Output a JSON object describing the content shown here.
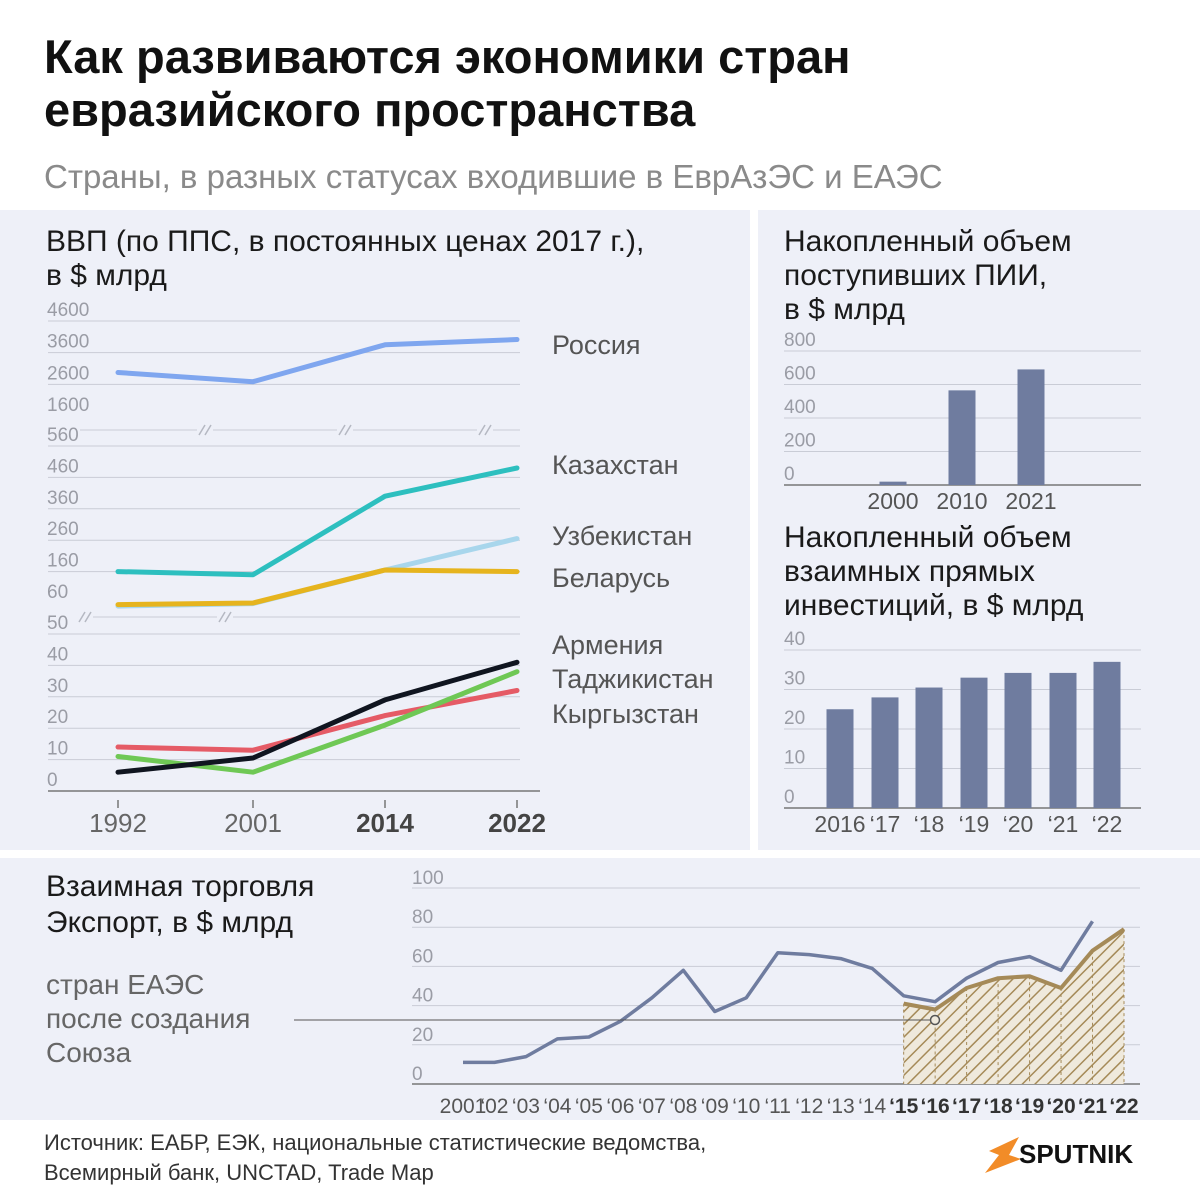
{
  "title": "Как развиваются экономики стран евразийского пространства",
  "subtitle": "Страны, в разных статусах входившие в ЕврАзЭС и ЕАЭС",
  "colors": {
    "russia": "#7fa6ef",
    "kazakhstan": "#2dbfbf",
    "uzbekistan": "#a8d6ec",
    "belarus": "#e6b41e",
    "armenia": "#e55b66",
    "tajikistan": "#6fc855",
    "kyrgyzstan": "#101520",
    "bars": "#6f7c9f",
    "export_line": "#6f7c9f",
    "export_eaeu": "#a58a58",
    "panel_bg": "#eef0f8",
    "logo": "#f28c28"
  },
  "gdp_panel": {
    "title": "ВВП (по ППС, в постоянных ценах 2017 г.),",
    "unit": "в $ млрд",
    "labels": {
      "russia": "Россия",
      "kazakhstan": "Казахстан",
      "uzbekistan": "Узбекистан",
      "belarus": "Беларусь",
      "armenia": "Армения",
      "tajikistan": "Таджикистан",
      "kyrgyzstan": "Кыргызстан"
    }
  },
  "fdi_panel": {
    "title_line1": "Накопленный объем",
    "title_line2": "поступивших ПИИ,",
    "title_line3": "в $ млрд"
  },
  "mutual_panel": {
    "title_line1": "Накопленный объем",
    "title_line2": "взаимных прямых",
    "title_line3": "инвестиций, в $ млрд"
  },
  "trade_panel": {
    "title_line1": "Взаимная торговля",
    "title_line2_bold": "Экспорт,",
    "title_line2_rest": " в $ млрд",
    "annotation": [
      "стран ЕАЭС",
      "после создания",
      "Союза"
    ]
  },
  "source": [
    "Источник: ЕАБР, ЕЭК, национальные статистические ведомства,",
    "Всемирный банк, UNCTAD, Trade Map"
  ],
  "logo_text": "SPUTNIK",
  "chart_data": [
    {
      "type": "line",
      "id": "gdp",
      "title": "ВВП (по ППС, в постоянных ценах 2017 г.), в $ млрд",
      "x": [
        "1992",
        "2001",
        "2014",
        "2022"
      ],
      "x_bold": [
        "2014",
        "2022"
      ],
      "panels": [
        {
          "ticks": [
            "4600",
            "3600",
            "2600",
            "1600"
          ],
          "ylim": [
            1000,
            4600
          ],
          "series": [
            {
              "name": "Россия",
              "key": "russia",
              "values": [
                2650,
                2300,
                3700,
                3900
              ]
            }
          ]
        },
        {
          "ticks": [
            "560",
            "460",
            "360",
            "260",
            "160",
            "60"
          ],
          "ylim": [
            60,
            560
          ],
          "series": [
            {
              "name": "Казахстан",
              "key": "kazakhstan",
              "values": [
                160,
                150,
                400,
                490
              ]
            },
            {
              "name": "Узбекистан",
              "key": "uzbekistan",
              "values": [
                50,
                58,
                165,
                265
              ]
            },
            {
              "name": "Беларусь",
              "key": "belarus",
              "values": [
                55,
                60,
                165,
                160
              ]
            }
          ]
        },
        {
          "ticks": [
            "50",
            "40",
            "30",
            "20",
            "10",
            "0"
          ],
          "ylim": [
            0,
            50
          ],
          "series": [
            {
              "name": "Армения",
              "key": "armenia",
              "values": [
                14,
                13,
                24,
                32
              ]
            },
            {
              "name": "Таджикистан",
              "key": "tajikistan",
              "values": [
                11,
                6,
                21,
                38
              ]
            },
            {
              "name": "Кыргызстан",
              "key": "kyrgyzstan",
              "values": [
                6,
                10.5,
                29,
                41
              ]
            }
          ]
        }
      ],
      "grid": true
    },
    {
      "type": "bar",
      "id": "fdi",
      "title": "Накопленный объем поступивших ПИИ, в $ млрд",
      "categories": [
        "2000",
        "2010",
        "2021"
      ],
      "values": [
        20,
        565,
        690
      ],
      "ylim": [
        0,
        800
      ],
      "ticks": [
        "800",
        "600",
        "400",
        "200",
        "0"
      ],
      "grid": true
    },
    {
      "type": "bar",
      "id": "mutual",
      "title": "Накопленный объем взаимных прямых инвестиций, в $ млрд",
      "categories": [
        "2016",
        "‘17",
        "‘18",
        "‘19",
        "‘20",
        "‘21",
        "‘22"
      ],
      "values": [
        25,
        28,
        30.5,
        33,
        34.2,
        34.2,
        37
      ],
      "ylim": [
        0,
        40
      ],
      "ticks": [
        "40",
        "30",
        "20",
        "10",
        "0"
      ],
      "grid": true
    },
    {
      "type": "area",
      "id": "trade",
      "title": "Взаимная торговля Экспорт, в $ млрд",
      "categories": [
        "2001",
        "‘02",
        "‘03",
        "‘04",
        "‘05",
        "‘06",
        "‘07",
        "‘08",
        "‘09",
        "‘10",
        "‘11",
        "‘12",
        "‘13",
        "‘14",
        "‘15",
        "‘16",
        "‘17",
        "‘18",
        "‘19",
        "‘20",
        "‘21",
        "‘22"
      ],
      "x_bold": [
        "‘15",
        "‘16",
        "‘17",
        "‘18",
        "‘19",
        "‘20",
        "‘21",
        "‘22"
      ],
      "ylim": [
        0,
        100
      ],
      "ticks": [
        "100",
        "80",
        "60",
        "40",
        "20",
        "0"
      ],
      "series": [
        {
          "name": "",
          "key": "export_line",
          "values": [
            11,
            11,
            14,
            23,
            24,
            32,
            44,
            58,
            37,
            44,
            67,
            66,
            64,
            59,
            45,
            42,
            54,
            62,
            65,
            58,
            83,
            null
          ]
        },
        {
          "name": "стран ЕАЭС после создания Союза",
          "key": "export_eaeu",
          "values": [
            null,
            null,
            null,
            null,
            null,
            null,
            null,
            null,
            null,
            null,
            null,
            null,
            null,
            null,
            41,
            38,
            49,
            54,
            55,
            49,
            68,
            79
          ]
        }
      ],
      "grid": true
    }
  ]
}
